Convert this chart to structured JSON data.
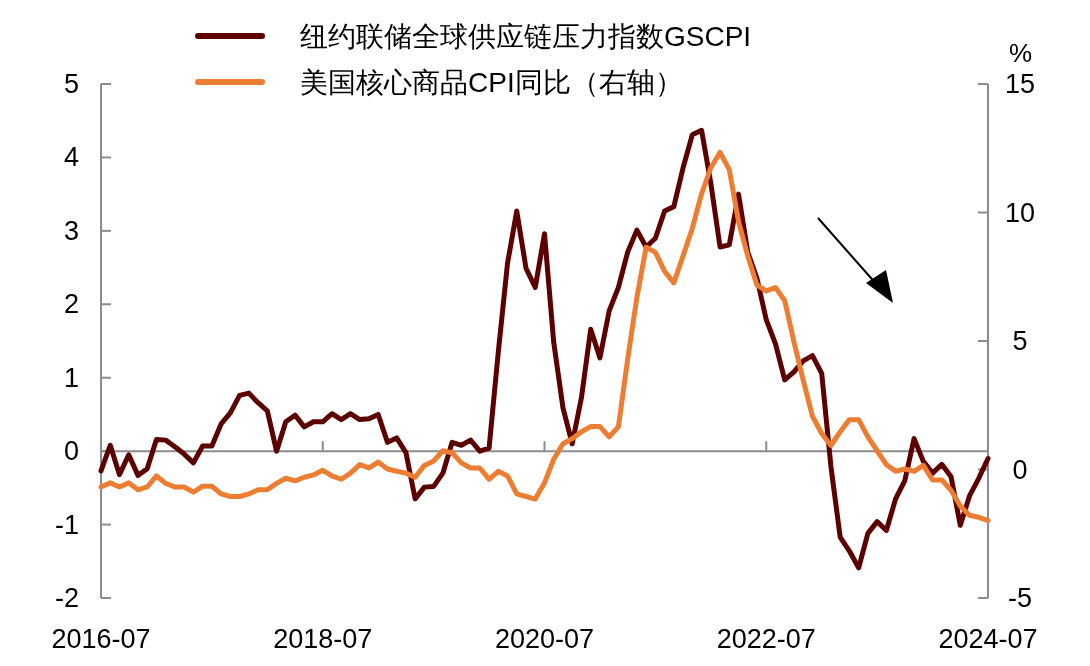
{
  "chart_data": {
    "type": "line",
    "x": [
      "2016-07",
      "2016-08",
      "2016-09",
      "2016-10",
      "2016-11",
      "2016-12",
      "2017-01",
      "2017-02",
      "2017-03",
      "2017-04",
      "2017-05",
      "2017-06",
      "2017-07",
      "2017-08",
      "2017-09",
      "2017-10",
      "2017-11",
      "2017-12",
      "2018-01",
      "2018-02",
      "2018-03",
      "2018-04",
      "2018-05",
      "2018-06",
      "2018-07",
      "2018-08",
      "2018-09",
      "2018-10",
      "2018-11",
      "2018-12",
      "2019-01",
      "2019-02",
      "2019-03",
      "2019-04",
      "2019-05",
      "2019-06",
      "2019-07",
      "2019-08",
      "2019-09",
      "2019-10",
      "2019-11",
      "2019-12",
      "2020-01",
      "2020-02",
      "2020-03",
      "2020-04",
      "2020-05",
      "2020-06",
      "2020-07",
      "2020-08",
      "2020-09",
      "2020-10",
      "2020-11",
      "2020-12",
      "2021-01",
      "2021-02",
      "2021-03",
      "2021-04",
      "2021-05",
      "2021-06",
      "2021-07",
      "2021-08",
      "2021-09",
      "2021-10",
      "2021-11",
      "2021-12",
      "2022-01",
      "2022-02",
      "2022-03",
      "2022-04",
      "2022-05",
      "2022-06",
      "2022-07",
      "2022-08",
      "2022-09",
      "2022-10",
      "2022-11",
      "2022-12",
      "2023-01",
      "2023-02",
      "2023-03",
      "2023-04",
      "2023-05",
      "2023-06",
      "2023-07",
      "2023-08",
      "2023-09",
      "2023-10",
      "2023-11",
      "2023-12",
      "2024-01",
      "2024-02",
      "2024-03",
      "2024-04",
      "2024-05",
      "2024-06",
      "2024-07"
    ],
    "series": [
      {
        "name": "纽约联储全球供应链压力指数GSCPI",
        "color": "#5c0000",
        "values": [
          -0.27,
          0.08,
          -0.32,
          -0.05,
          -0.33,
          -0.24,
          0.16,
          0.15,
          0.06,
          -0.04,
          -0.16,
          0.07,
          0.07,
          0.37,
          0.52,
          0.76,
          0.79,
          0.66,
          0.55,
          0.0,
          0.4,
          0.49,
          0.33,
          0.4,
          0.4,
          0.51,
          0.43,
          0.51,
          0.43,
          0.44,
          0.5,
          0.12,
          0.18,
          -0.02,
          -0.65,
          -0.49,
          -0.48,
          -0.3,
          0.12,
          0.08,
          0.15,
          0.0,
          0.04,
          1.35,
          2.56,
          3.27,
          2.49,
          2.23,
          2.96,
          1.48,
          0.59,
          0.1,
          0.73,
          1.66,
          1.27,
          1.91,
          2.23,
          2.71,
          3.01,
          2.78,
          2.9,
          3.27,
          3.33,
          3.86,
          4.31,
          4.37,
          3.65,
          2.78,
          2.81,
          3.5,
          2.71,
          2.35,
          1.79,
          1.46,
          0.97,
          1.08,
          1.23,
          1.3,
          1.06,
          -0.21,
          -1.17,
          -1.36,
          -1.59,
          -1.12,
          -0.96,
          -1.08,
          -0.65,
          -0.4,
          0.17,
          -0.14,
          -0.3,
          -0.18,
          -0.35,
          -1.01,
          -0.61,
          -0.37,
          -0.1
        ]
      },
      {
        "name": "美国核心商品CPI同比（右轴）",
        "color": "#ed7d31",
        "axis": "y2",
        "values": [
          -0.68,
          -0.52,
          -0.68,
          -0.52,
          -0.79,
          -0.68,
          -0.25,
          -0.54,
          -0.68,
          -0.68,
          -0.88,
          -0.65,
          -0.65,
          -0.95,
          -1.05,
          -1.05,
          -0.95,
          -0.79,
          -0.79,
          -0.54,
          -0.34,
          -0.44,
          -0.3,
          -0.21,
          -0.03,
          -0.25,
          -0.38,
          -0.14,
          0.19,
          0.06,
          0.29,
          0.02,
          -0.07,
          -0.14,
          -0.3,
          0.16,
          0.33,
          0.73,
          0.65,
          0.26,
          0.06,
          0.06,
          -0.38,
          -0.07,
          -0.25,
          -0.95,
          -1.05,
          -1.15,
          -0.52,
          0.4,
          1.0,
          1.2,
          1.47,
          1.67,
          1.67,
          1.27,
          1.67,
          4.29,
          6.7,
          8.65,
          8.45,
          7.71,
          7.26,
          8.31,
          9.39,
          10.73,
          11.74,
          12.34,
          11.67,
          9.65,
          8.31,
          7.17,
          6.95,
          7.08,
          6.57,
          4.96,
          3.48,
          2.07,
          1.4,
          0.93,
          1.47,
          1.94,
          1.94,
          1.27,
          0.73,
          0.19,
          -0.07,
          0.02,
          -0.07,
          0.16,
          -0.41,
          -0.41,
          -0.81,
          -1.42,
          -1.78,
          -1.86,
          -1.99
        ]
      }
    ],
    "xlim": [
      "2016-07",
      "2024-07"
    ],
    "xticks": [
      "2016-07",
      "2018-07",
      "2020-07",
      "2022-07",
      "2024-07"
    ],
    "ylim": [
      -2,
      5
    ],
    "yticks": [
      -2,
      -1,
      0,
      1,
      2,
      3,
      4,
      5
    ],
    "y2lim": [
      -5,
      15
    ],
    "y2ticks": [
      -5,
      0,
      5,
      10,
      15
    ],
    "y2label": "%",
    "legend": "top",
    "line_style": "solid",
    "marker": "none"
  }
}
